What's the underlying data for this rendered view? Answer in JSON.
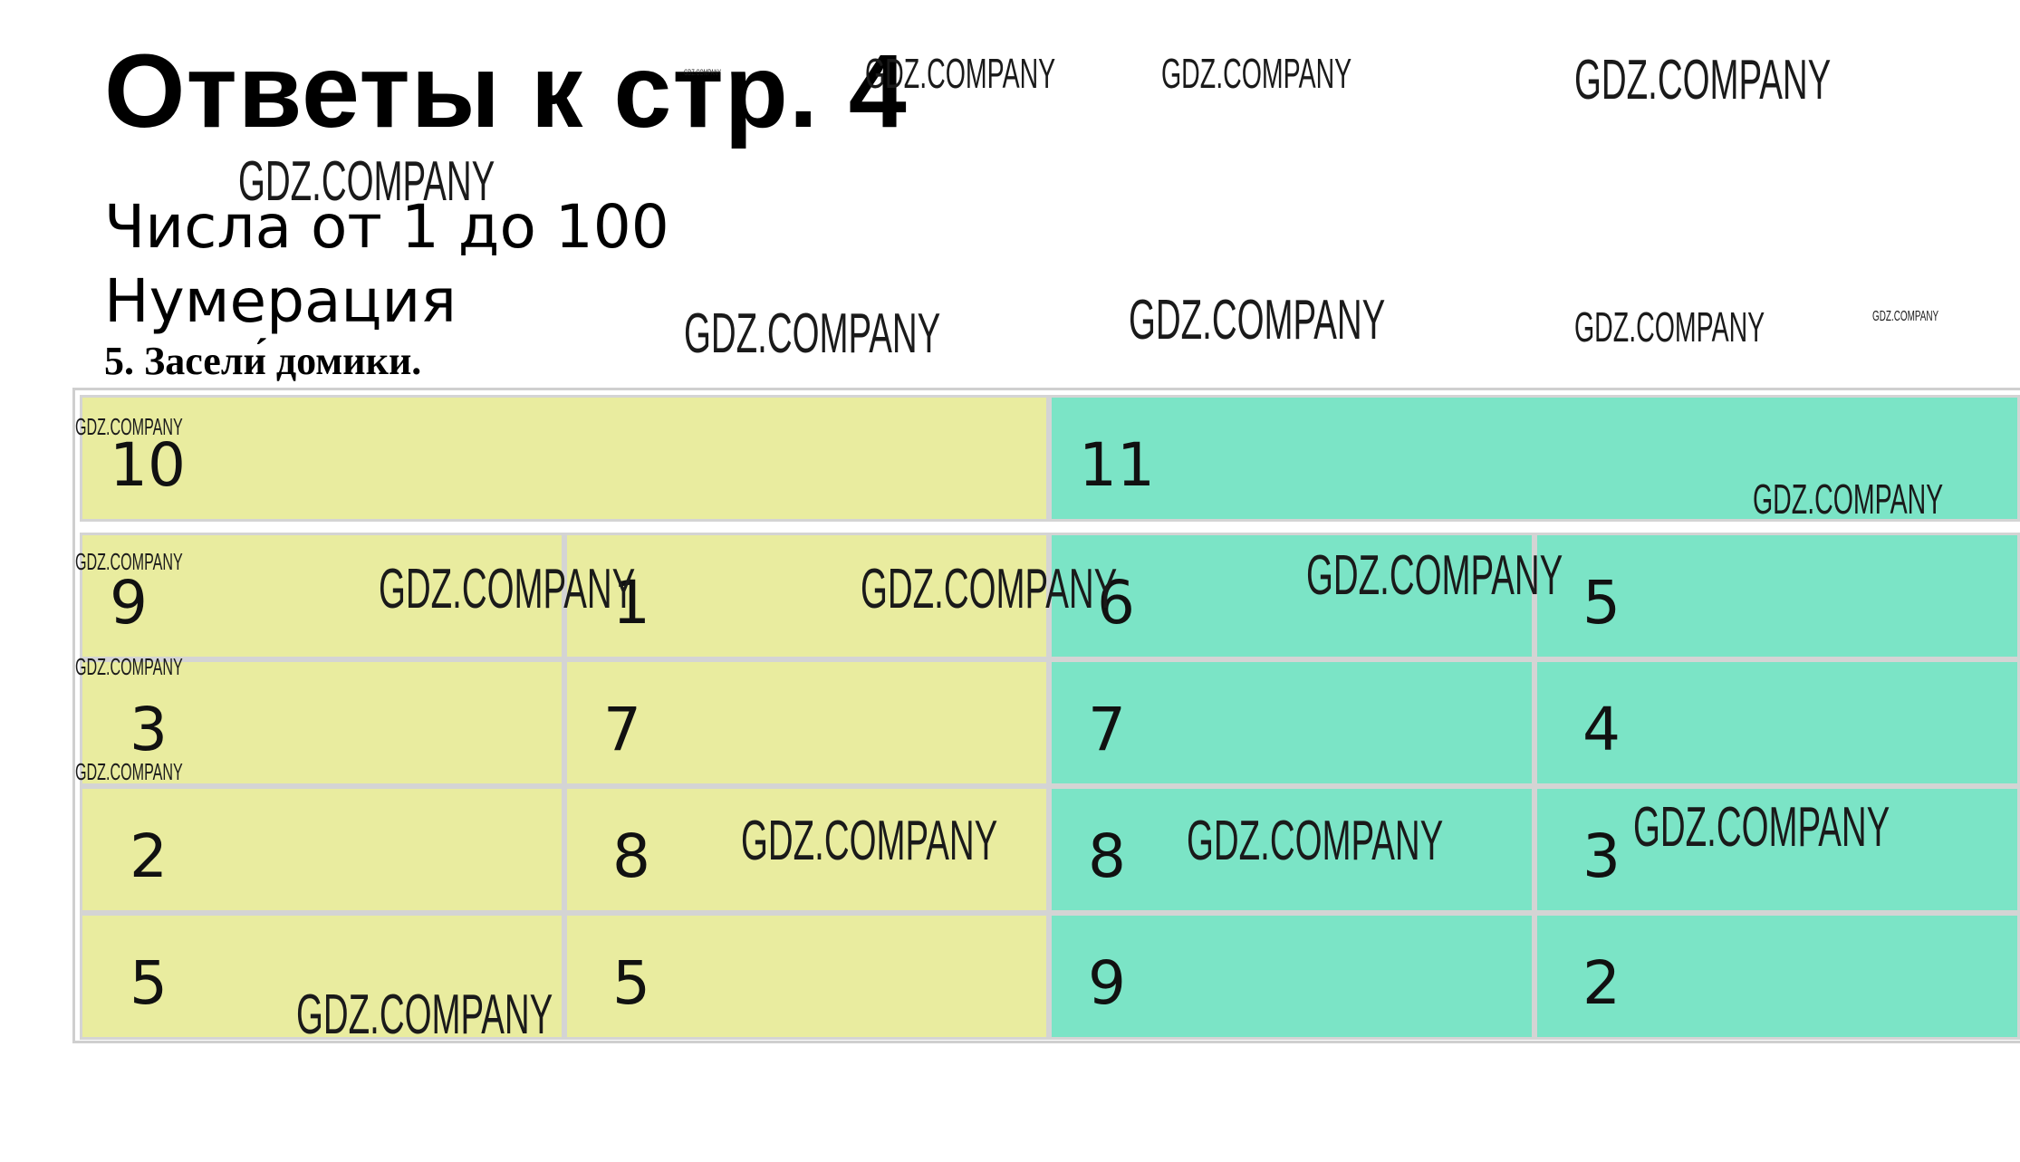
{
  "page": {
    "title": "Ответы к стр. 4",
    "subtitle_1": "Числа от 1 до 100",
    "subtitle_2": "Нумерация",
    "task": "5. Засели́ домики."
  },
  "watermark_text": "GDZ.COMPANY",
  "colors": {
    "yellow_house": "#e9ec9f",
    "teal_house": "#7be4c6",
    "cell_border": "#d4d4d4"
  },
  "houses": {
    "yellow": {
      "roof": "10",
      "rows": [
        [
          "9",
          "1"
        ],
        [
          "3",
          "7"
        ],
        [
          "2",
          "8"
        ],
        [
          "5",
          "5"
        ]
      ]
    },
    "teal": {
      "roof": "11",
      "rows": [
        [
          "6",
          "5"
        ],
        [
          "7",
          "4"
        ],
        [
          "8",
          "3"
        ],
        [
          "9",
          "2"
        ]
      ]
    }
  }
}
